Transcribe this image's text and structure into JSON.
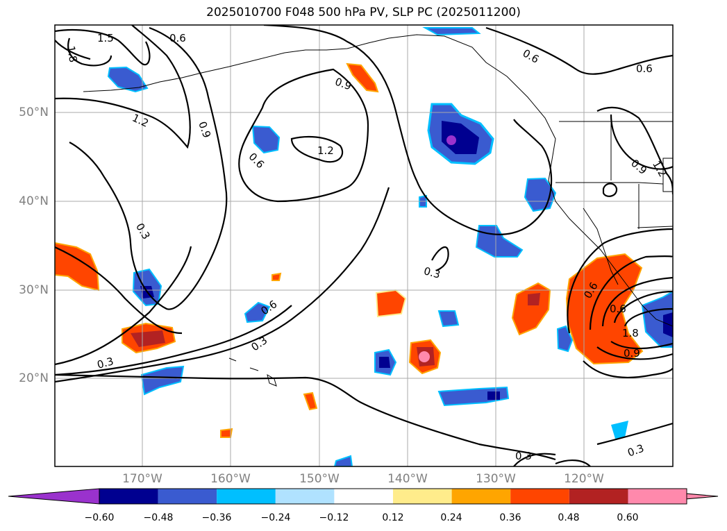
{
  "title": "2025010700 F048 500 hPa PV, SLP PC (2025011200)",
  "lat_labels": [
    "50°N",
    "40°N",
    "30°N",
    "20°N"
  ],
  "lon_labels": [
    "170°W",
    "160°W",
    "150°W",
    "140°W",
    "130°W",
    "120°W"
  ],
  "contour_labels": [
    "1.5",
    "0.6",
    "1.8",
    "1.2",
    "0.9",
    "0.6",
    "1.2",
    "0.9",
    "0.6",
    "0.6",
    "0.3",
    "0.3",
    "0.6",
    "0.3",
    "0.3",
    "0.6",
    "1.8",
    "0.9",
    "0.3",
    "0.3",
    "0.6",
    "0.9",
    "1.2"
  ],
  "colorbar": {
    "ticks": [
      "−0.60",
      "−0.48",
      "−0.36",
      "−0.24",
      "−0.12",
      "0.12",
      "0.24",
      "0.36",
      "0.48",
      "0.60"
    ],
    "colors": [
      "#9a32cd",
      "#000090",
      "#3a5bd0",
      "#00bfff",
      "#b0e2ff",
      "#ffffff",
      "#ffec8b",
      "#ffa500",
      "#ff4500",
      "#b22222",
      "#ff89ac",
      "#ff89ac"
    ]
  }
}
